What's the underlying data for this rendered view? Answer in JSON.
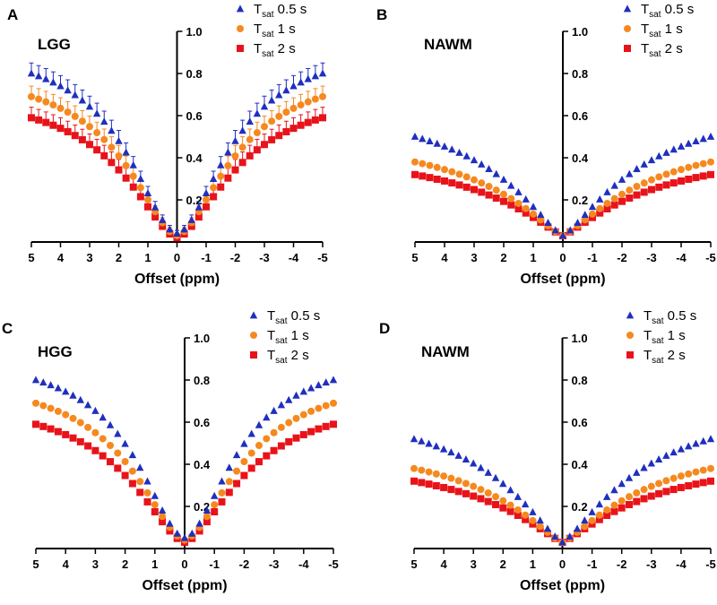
{
  "figure": {
    "colors": {
      "series_0_5s": "#1f2fbf",
      "series_1s": "#f5891f",
      "series_2s": "#e8131a",
      "axis": "#000000"
    }
  },
  "chart_data": [
    {
      "type": "scatter",
      "panel": "A",
      "label": "LGG",
      "xlabel": "Offset (ppm)",
      "ylabel": "",
      "xlim": [
        5,
        -5
      ],
      "ylim": [
        0,
        1.0
      ],
      "x_ticks": [
        "5",
        "4",
        "3",
        "2",
        "1",
        "0",
        "-1",
        "-2",
        "-3",
        "-4",
        "-5"
      ],
      "y_ticks": [
        "0.2",
        "0.4",
        "0.6",
        "0.8",
        "1.0"
      ],
      "error_bars": true,
      "series": [
        {
          "name": "T_sat 0.5 s",
          "legend_main": "T",
          "legend_sub": "sat",
          "legend_rest": " 0.5 s",
          "marker": "triangle",
          "min": 0.04,
          "max": 0.8,
          "k": 2.1,
          "p": 1.8
        },
        {
          "name": "T_sat 1 s",
          "legend_main": "T",
          "legend_sub": "sat",
          "legend_rest": " 1 s",
          "marker": "circle",
          "min": 0.03,
          "max": 0.69,
          "k": 2.2,
          "p": 1.7
        },
        {
          "name": "T_sat 2 s",
          "legend_main": "T",
          "legend_sub": "sat",
          "legend_rest": " 2 s",
          "marker": "square",
          "min": 0.02,
          "max": 0.59,
          "k": 2.3,
          "p": 1.65
        }
      ]
    },
    {
      "type": "scatter",
      "panel": "B",
      "label": "NAWM",
      "xlabel": "Offset (ppm)",
      "ylabel": "",
      "xlim": [
        5,
        -5
      ],
      "ylim": [
        0,
        1.0
      ],
      "x_ticks": [
        "5",
        "4",
        "3",
        "2",
        "1",
        "0",
        "-1",
        "-2",
        "-3",
        "-4",
        "-5"
      ],
      "y_ticks": [
        "0.2",
        "0.4",
        "0.6",
        "0.8",
        "1.0"
      ],
      "error_bars": false,
      "series": [
        {
          "name": "T_sat 0.5 s",
          "legend_main": "T",
          "legend_sub": "sat",
          "legend_rest": " 0.5 s",
          "marker": "triangle",
          "min": 0.03,
          "max": 0.5,
          "k": 2.8,
          "p": 1.35
        },
        {
          "name": "T_sat 1 s",
          "legend_main": "T",
          "legend_sub": "sat",
          "legend_rest": " 1 s",
          "marker": "circle",
          "min": 0.03,
          "max": 0.38,
          "k": 3.0,
          "p": 1.3
        },
        {
          "name": "T_sat 2 s",
          "legend_main": "T",
          "legend_sub": "sat",
          "legend_rest": " 2 s",
          "marker": "square",
          "min": 0.03,
          "max": 0.32,
          "k": 3.2,
          "p": 1.25
        }
      ]
    },
    {
      "type": "scatter",
      "panel": "C",
      "label": "HGG",
      "xlabel": "Offset (ppm)",
      "ylabel": "",
      "xlim": [
        5,
        -5
      ],
      "ylim": [
        0,
        1.0
      ],
      "x_ticks": [
        "5",
        "4",
        "3",
        "2",
        "1",
        "0",
        "-1",
        "-2",
        "-3",
        "-4",
        "-5"
      ],
      "y_ticks": [
        "0.2",
        "0.4",
        "0.6",
        "0.8",
        "1.0"
      ],
      "error_bars": false,
      "series": [
        {
          "name": "T_sat 0.5 s",
          "legend_main": "T",
          "legend_sub": "sat",
          "legend_rest": " 0.5 s",
          "marker": "triangle",
          "min": 0.05,
          "max": 0.8,
          "k": 2.0,
          "p": 1.8
        },
        {
          "name": "T_sat 1 s",
          "legend_main": "T",
          "legend_sub": "sat",
          "legend_rest": " 1 s",
          "marker": "circle",
          "min": 0.04,
          "max": 0.69,
          "k": 2.2,
          "p": 1.7
        },
        {
          "name": "T_sat 2 s",
          "legend_main": "T",
          "legend_sub": "sat",
          "legend_rest": " 2 s",
          "marker": "square",
          "min": 0.03,
          "max": 0.59,
          "k": 2.3,
          "p": 1.65
        }
      ]
    },
    {
      "type": "scatter",
      "panel": "D",
      "label": "NAWM",
      "xlabel": "Offset (ppm)",
      "ylabel": "",
      "xlim": [
        5,
        -5
      ],
      "ylim": [
        0,
        1.0
      ],
      "x_ticks": [
        "5",
        "4",
        "3",
        "2",
        "1",
        "0",
        "-1",
        "-2",
        "-3",
        "-4",
        "-5"
      ],
      "y_ticks": [
        "0.2",
        "0.4",
        "0.6",
        "0.8",
        "1.0"
      ],
      "error_bars": false,
      "series": [
        {
          "name": "T_sat 0.5 s",
          "legend_main": "T",
          "legend_sub": "sat",
          "legend_rest": " 0.5 s",
          "marker": "triangle",
          "min": 0.03,
          "max": 0.52,
          "k": 2.8,
          "p": 1.35
        },
        {
          "name": "T_sat 1 s",
          "legend_main": "T",
          "legend_sub": "sat",
          "legend_rest": " 1 s",
          "marker": "circle",
          "min": 0.03,
          "max": 0.38,
          "k": 3.0,
          "p": 1.3
        },
        {
          "name": "T_sat 2 s",
          "legend_main": "T",
          "legend_sub": "sat",
          "legend_rest": " 2 s",
          "marker": "square",
          "min": 0.03,
          "max": 0.32,
          "k": 3.2,
          "p": 1.25
        }
      ]
    }
  ]
}
